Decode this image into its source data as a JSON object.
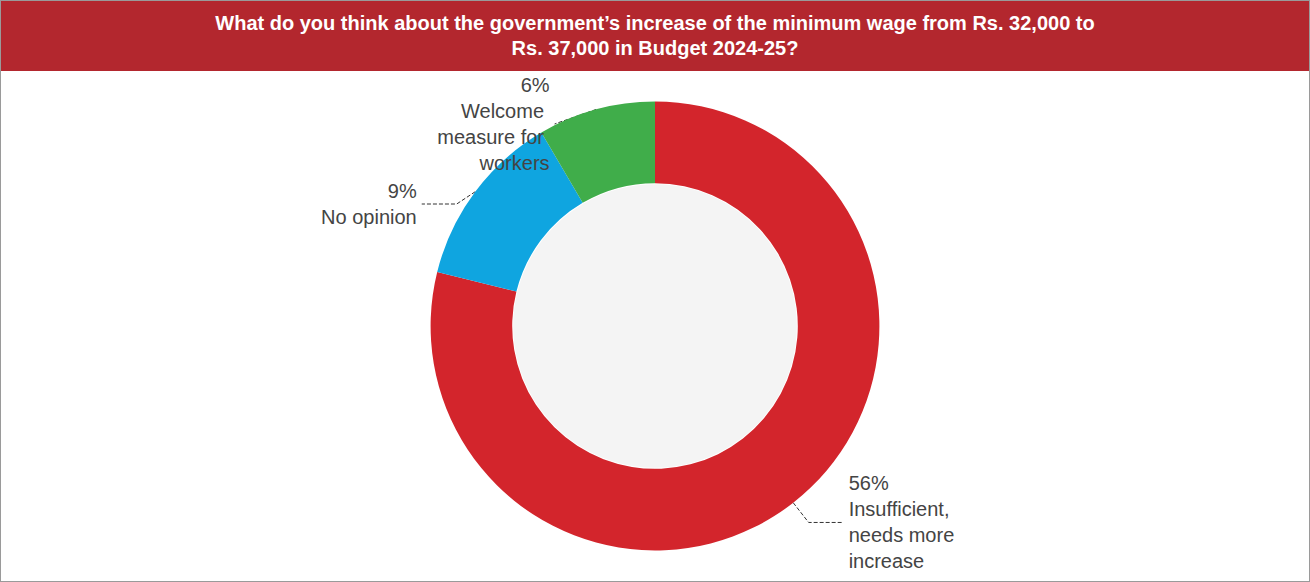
{
  "chart_data": {
    "type": "donut",
    "title": "What do you think about the government’s increase of the minimum wage from Rs. 32,000 to Rs. 37,000 in Budget 2024-25?",
    "categories": [
      "Insufficient, needs more increase",
      "No opinion",
      "Welcome measure for workers"
    ],
    "values": [
      56,
      9,
      6
    ],
    "value_labels": [
      "56%",
      "9%",
      "6%"
    ],
    "colors": [
      "#d3252c",
      "#0fa5e0",
      "#40ad4a"
    ],
    "data_labels": true
  }
}
